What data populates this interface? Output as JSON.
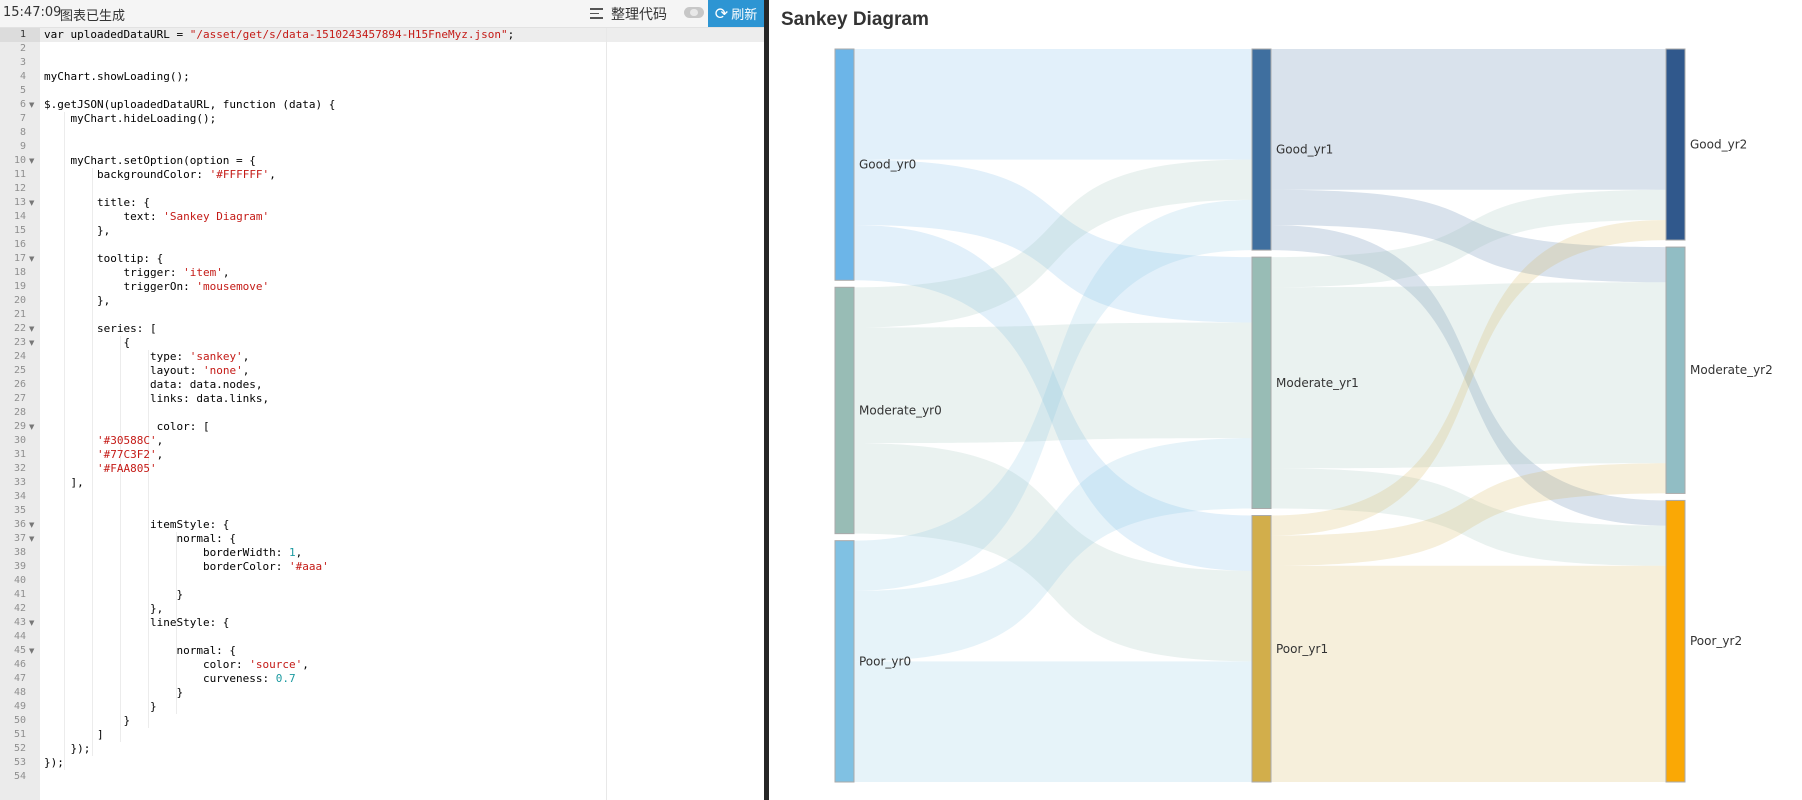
{
  "toolbar": {
    "time": "15:47:09",
    "status": "图表已生成",
    "format_label": "整理代码",
    "refresh_label": "刷新",
    "format_icon": "align-lines-icon",
    "refresh_icon": "refresh-icon"
  },
  "editor": {
    "line_numbers": [
      "1",
      "2",
      "3",
      "4",
      "5",
      "6",
      "7",
      "8",
      "9",
      "10",
      "11",
      "12",
      "13",
      "14",
      "15",
      "16",
      "17",
      "18",
      "19",
      "20",
      "21",
      "22",
      "23",
      "24",
      "25",
      "26",
      "27",
      "28",
      "29",
      "30",
      "31",
      "32",
      "33",
      "34",
      "35",
      "36",
      "37",
      "38",
      "39",
      "40",
      "41",
      "42",
      "43",
      "44",
      "45",
      "46",
      "47",
      "48",
      "49",
      "50",
      "51",
      "52",
      "53",
      "54"
    ],
    "code_lines": [
      [
        {
          "t": "var uploadedDataURL = "
        },
        {
          "t": "\"/asset/get/s/data-1510243457894-H15FneMyz.json\"",
          "c": "str"
        },
        {
          "t": ";"
        }
      ],
      [],
      [],
      [
        {
          "t": "myChart.showLoading();"
        }
      ],
      [],
      [
        {
          "t": "$.getJSON(uploadedDataURL, function (data) {"
        }
      ],
      [
        {
          "t": "    myChart.hideLoading();"
        }
      ],
      [],
      [],
      [
        {
          "t": "    myChart.setOption(option = {"
        }
      ],
      [
        {
          "t": "        backgroundColor: "
        },
        {
          "t": "'#FFFFFF'",
          "c": "str"
        },
        {
          "t": ","
        }
      ],
      [],
      [
        {
          "t": "        title: {"
        }
      ],
      [
        {
          "t": "            text: "
        },
        {
          "t": "'Sankey Diagram'",
          "c": "str"
        }
      ],
      [
        {
          "t": "        },"
        }
      ],
      [],
      [
        {
          "t": "        tooltip: {"
        }
      ],
      [
        {
          "t": "            trigger: "
        },
        {
          "t": "'item'",
          "c": "str"
        },
        {
          "t": ","
        }
      ],
      [
        {
          "t": "            triggerOn: "
        },
        {
          "t": "'mousemove'",
          "c": "str"
        }
      ],
      [
        {
          "t": "        },"
        }
      ],
      [],
      [
        {
          "t": "        series: ["
        }
      ],
      [
        {
          "t": "            {"
        }
      ],
      [
        {
          "t": "                type: "
        },
        {
          "t": "'sankey'",
          "c": "str"
        },
        {
          "t": ","
        }
      ],
      [
        {
          "t": "                layout: "
        },
        {
          "t": "'none'",
          "c": "str"
        },
        {
          "t": ","
        }
      ],
      [
        {
          "t": "                data: data.nodes,"
        }
      ],
      [
        {
          "t": "                links: data.links,"
        }
      ],
      [],
      [
        {
          "t": "                 color: ["
        }
      ],
      [
        {
          "t": "        "
        },
        {
          "t": "'#30588C'",
          "c": "str"
        },
        {
          "t": ","
        }
      ],
      [
        {
          "t": "        "
        },
        {
          "t": "'#77C3F2'",
          "c": "str"
        },
        {
          "t": ","
        }
      ],
      [
        {
          "t": "        "
        },
        {
          "t": "'#FAA805'",
          "c": "str"
        }
      ],
      [
        {
          "t": "    ],"
        }
      ],
      [],
      [],
      [
        {
          "t": "                itemStyle: {"
        }
      ],
      [
        {
          "t": "                    normal: {"
        }
      ],
      [
        {
          "t": "                        borderWidth: "
        },
        {
          "t": "1",
          "c": "num"
        },
        {
          "t": ","
        }
      ],
      [
        {
          "t": "                        borderColor: "
        },
        {
          "t": "'#aaa'",
          "c": "str"
        }
      ],
      [],
      [
        {
          "t": "                    }"
        }
      ],
      [
        {
          "t": "                },"
        }
      ],
      [
        {
          "t": "                lineStyle: {"
        }
      ],
      [],
      [
        {
          "t": "                    normal: {"
        }
      ],
      [
        {
          "t": "                        color: "
        },
        {
          "t": "'source'",
          "c": "str"
        },
        {
          "t": ","
        }
      ],
      [
        {
          "t": "                        curveness: "
        },
        {
          "t": "0.7",
          "c": "num"
        }
      ],
      [
        {
          "t": "                    }"
        }
      ],
      [
        {
          "t": "                }"
        }
      ],
      [
        {
          "t": "            }"
        }
      ],
      [
        {
          "t": "        ]"
        }
      ],
      [
        {
          "t": "    });"
        }
      ],
      [
        {
          "t": "});"
        }
      ],
      []
    ],
    "fold_lines": [
      6,
      10,
      13,
      17,
      22,
      23,
      29,
      36,
      37,
      43,
      45
    ]
  },
  "chart_data": {
    "type": "sankey",
    "title": "Sankey Diagram",
    "nodes": [
      {
        "name": "Good_yr0",
        "column": 0,
        "value": 46,
        "color": "#6cb5e8"
      },
      {
        "name": "Moderate_yr0",
        "column": 0,
        "value": 49,
        "color": "#98bcb5"
      },
      {
        "name": "Poor_yr0",
        "column": 0,
        "value": 48,
        "color": "#80c1e3"
      },
      {
        "name": "Good_yr1",
        "column": 1,
        "value": 40,
        "color": "#3f6f9f"
      },
      {
        "name": "Moderate_yr1",
        "column": 1,
        "value": 50,
        "color": "#98bcb5"
      },
      {
        "name": "Poor_yr1",
        "column": 1,
        "value": 53,
        "color": "#d2ae4b"
      },
      {
        "name": "Good_yr2",
        "column": 2,
        "value": 38,
        "color": "#30588c"
      },
      {
        "name": "Moderate_yr2",
        "column": 2,
        "value": 49,
        "color": "#91bdc4"
      },
      {
        "name": "Poor_yr2",
        "column": 2,
        "value": 56,
        "color": "#faa805"
      }
    ],
    "links": [
      {
        "source": "Good_yr0",
        "target": "Good_yr1",
        "value": 22
      },
      {
        "source": "Good_yr0",
        "target": "Moderate_yr1",
        "value": 13
      },
      {
        "source": "Good_yr0",
        "target": "Poor_yr1",
        "value": 11
      },
      {
        "source": "Moderate_yr0",
        "target": "Good_yr1",
        "value": 8
      },
      {
        "source": "Moderate_yr0",
        "target": "Moderate_yr1",
        "value": 23
      },
      {
        "source": "Moderate_yr0",
        "target": "Poor_yr1",
        "value": 18
      },
      {
        "source": "Poor_yr0",
        "target": "Good_yr1",
        "value": 10
      },
      {
        "source": "Poor_yr0",
        "target": "Moderate_yr1",
        "value": 14
      },
      {
        "source": "Poor_yr0",
        "target": "Poor_yr1",
        "value": 24
      },
      {
        "source": "Good_yr1",
        "target": "Good_yr2",
        "value": 28
      },
      {
        "source": "Good_yr1",
        "target": "Moderate_yr2",
        "value": 7
      },
      {
        "source": "Good_yr1",
        "target": "Poor_yr2",
        "value": 5
      },
      {
        "source": "Moderate_yr1",
        "target": "Good_yr2",
        "value": 6
      },
      {
        "source": "Moderate_yr1",
        "target": "Moderate_yr2",
        "value": 36
      },
      {
        "source": "Moderate_yr1",
        "target": "Poor_yr2",
        "value": 8
      },
      {
        "source": "Poor_yr1",
        "target": "Good_yr2",
        "value": 4
      },
      {
        "source": "Poor_yr1",
        "target": "Moderate_yr2",
        "value": 6
      },
      {
        "source": "Poor_yr1",
        "target": "Poor_yr2",
        "value": 43
      }
    ]
  }
}
